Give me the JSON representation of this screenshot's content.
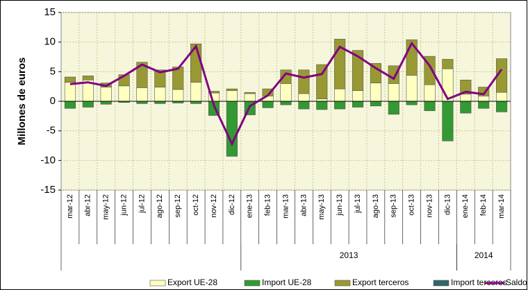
{
  "chart_data": {
    "type": "stacked-bar-line",
    "y_label": "Millones de euros",
    "categories": [
      "mar-12",
      "abr-12",
      "may-12",
      "jun-12",
      "jul-12",
      "ago-12",
      "sep-12",
      "oct-12",
      "nov-12",
      "dic-12",
      "ene-13",
      "feb-13",
      "mar-13",
      "abr-13",
      "may-13",
      "jun-13",
      "jul-13",
      "ago-13",
      "sep-13",
      "oct-13",
      "nov-13",
      "dic-13",
      "ene-14",
      "feb-14",
      "mar-14"
    ],
    "groups": [
      {
        "label": null,
        "count": 10
      },
      {
        "label": "2013",
        "count": 12
      },
      {
        "label": "2014",
        "count": 3
      }
    ],
    "series": [
      {
        "name": "Export UE-28",
        "color": "#ffffc0",
        "kind": "bar",
        "values": [
          3.2,
          3.6,
          2.4,
          2.6,
          2.3,
          2.4,
          2.0,
          3.2,
          1.4,
          1.8,
          1.3,
          0.9,
          3.0,
          1.3,
          0.4,
          2.1,
          1.8,
          3.1,
          3.0,
          4.4,
          2.8,
          5.5,
          1.2,
          0.9,
          1.5
        ]
      },
      {
        "name": "Import UE-28",
        "color": "#339933",
        "kind": "bar",
        "values": [
          -1.2,
          -1.0,
          -0.5,
          -0.2,
          -0.4,
          -0.4,
          -0.3,
          -0.4,
          -2.4,
          -9.3,
          -2.3,
          -1.1,
          -0.6,
          -1.3,
          -1.4,
          -1.3,
          -1.0,
          -0.8,
          -2.2,
          -0.6,
          -1.6,
          -6.7,
          -2.0,
          -1.2,
          -1.8
        ]
      },
      {
        "name": "Export terceros",
        "color": "#999933",
        "kind": "bar",
        "values": [
          0.9,
          0.7,
          0.7,
          1.9,
          4.3,
          2.9,
          3.8,
          6.5,
          0.3,
          0.3,
          0.2,
          1.2,
          2.3,
          4.0,
          5.8,
          8.4,
          6.8,
          3.3,
          3.0,
          6.0,
          4.8,
          1.6,
          2.4,
          1.5,
          5.7
        ]
      },
      {
        "name": "Import terceros",
        "color": "#336666",
        "kind": "bar",
        "values": [
          0,
          0,
          0,
          0,
          0,
          0,
          0,
          0,
          0,
          0,
          0,
          0,
          0,
          0,
          0,
          0,
          0,
          0,
          0,
          0,
          0,
          0,
          0,
          0,
          0
        ]
      },
      {
        "name": "Saldo",
        "color": "#800080",
        "kind": "line",
        "values": [
          2.9,
          3.2,
          2.6,
          4.3,
          6.2,
          4.9,
          5.5,
          9.3,
          -0.7,
          -7.2,
          -0.8,
          1.0,
          4.7,
          4.0,
          4.6,
          9.2,
          7.6,
          5.6,
          3.8,
          9.8,
          6.0,
          0.4,
          1.6,
          1.2,
          5.4
        ]
      }
    ],
    "ylim": [
      -15,
      15
    ],
    "yticks": [
      -15,
      -10,
      -5,
      0,
      5,
      10,
      15
    ],
    "grid": true,
    "legend": "bottom"
  }
}
